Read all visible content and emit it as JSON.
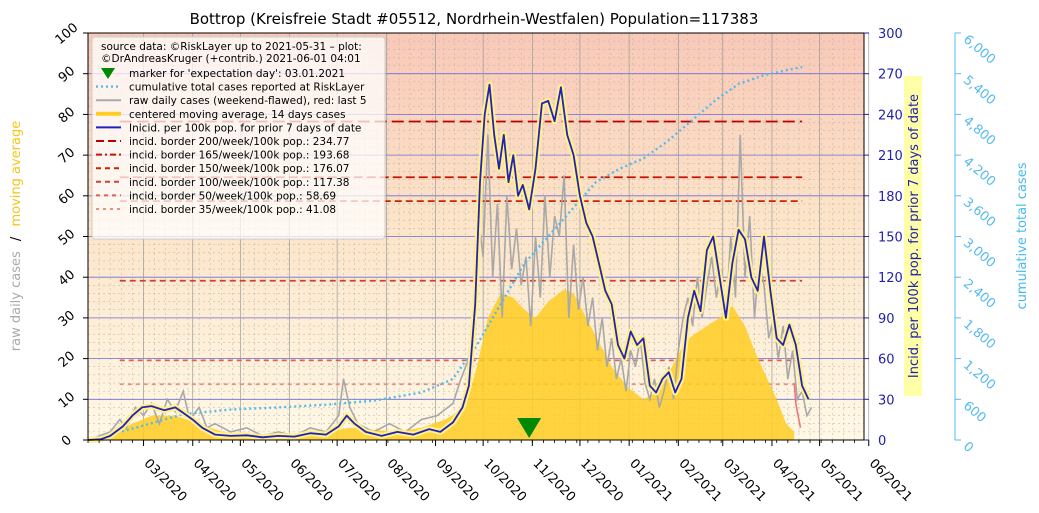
{
  "chart_data": {
    "type": "line",
    "title": "Bottrop (Kreisfreie Stadt #05512, Nordrhein-Westfalen) Population=117383",
    "ylabel_left": [
      "raw daily cases",
      "/",
      "moving average"
    ],
    "ylabel_right": "Incid. per 100k pop. for prior 7 days of date",
    "ylabel_far_right": "cumulative total cases",
    "ylim_left": [
      0,
      100
    ],
    "ylim_right": [
      0,
      300
    ],
    "ylim_far_right": [
      0,
      6000
    ],
    "yticks_left": [
      "0",
      "10",
      "20",
      "30",
      "40",
      "50",
      "60",
      "70",
      "80",
      "90",
      "100"
    ],
    "yticks_right": [
      "0",
      "30",
      "60",
      "90",
      "120",
      "150",
      "180",
      "210",
      "240",
      "270",
      "300"
    ],
    "yticks_far_right": [
      "0",
      "600",
      "1,200",
      "1,800",
      "2,400",
      "3,000",
      "3,600",
      "4,200",
      "4,800",
      "5,400",
      "6,000"
    ],
    "xticks": [
      "03/2020",
      "04/2020",
      "05/2020",
      "06/2020",
      "07/2020",
      "08/2020",
      "09/2020",
      "10/2020",
      "11/2020",
      "12/2020",
      "01/2021",
      "02/2021",
      "03/2021",
      "04/2021",
      "05/2021",
      "06/2021"
    ],
    "xrange_days": [
      0,
      489
    ],
    "legend": {
      "source": [
        "source data: ©RiskLayer up to 2021-05-31 – plot:",
        "©DrAndreasKruger (+contrib.) 2021-06-01 04:01"
      ],
      "entries": [
        "marker for 'expectation day': 03.01.2021",
        "cumulative total cases reported at RiskLayer",
        "raw daily cases (weekend-flawed), red: last 5",
        "centered moving average, 14 days cases",
        "Inicid. per 100k pop. for prior 7 days of date",
        "incid. border 200/week/100k pop.: 234.77",
        "incid. border 165/week/100k pop.: 193.68",
        "incid. border 150/week/100k pop.: 176.07",
        "incid. border 100/week/100k pop.: 117.38",
        "incid. border   50/week/100k pop.: 58.69",
        "incid. border   35/week/100k pop.: 41.08"
      ]
    },
    "borders": [
      {
        "label": "200",
        "value": 234.77,
        "color": "#bb0000",
        "dash": "12,5"
      },
      {
        "label": "165",
        "value": 193.68,
        "color": "#cc1100",
        "dash": "9,4"
      },
      {
        "label": "150",
        "value": 176.07,
        "color": "#cc2200",
        "dash": "7,4"
      },
      {
        "label": "100",
        "value": 117.38,
        "color": "#d04030",
        "dash": "6,4"
      },
      {
        "label": "50",
        "value": 58.69,
        "color": "#e06050",
        "dash": "5,4"
      },
      {
        "label": "35",
        "value": 41.08,
        "color": "#e89080",
        "dash": "4,4"
      }
    ],
    "expectation_day": 278,
    "moving_average": [
      [
        0,
        0
      ],
      [
        14,
        1.5
      ],
      [
        28,
        4
      ],
      [
        40,
        6
      ],
      [
        55,
        6
      ],
      [
        70,
        4
      ],
      [
        85,
        2
      ],
      [
        100,
        1.2
      ],
      [
        115,
        1
      ],
      [
        130,
        1.5
      ],
      [
        150,
        2
      ],
      [
        165,
        3
      ],
      [
        180,
        2.5
      ],
      [
        195,
        2
      ],
      [
        210,
        3
      ],
      [
        225,
        5
      ],
      [
        238,
        8
      ],
      [
        245,
        18
      ],
      [
        252,
        30
      ],
      [
        260,
        36
      ],
      [
        268,
        35
      ],
      [
        275,
        32
      ],
      [
        282,
        30
      ],
      [
        290,
        34
      ],
      [
        300,
        37
      ],
      [
        306,
        36
      ],
      [
        314,
        30
      ],
      [
        322,
        24
      ],
      [
        330,
        18
      ],
      [
        340,
        13
      ],
      [
        350,
        10
      ],
      [
        360,
        12
      ],
      [
        368,
        18
      ],
      [
        376,
        24
      ],
      [
        382,
        26
      ],
      [
        390,
        28
      ],
      [
        398,
        30
      ],
      [
        406,
        33
      ],
      [
        414,
        28
      ],
      [
        420,
        22
      ],
      [
        428,
        15
      ],
      [
        434,
        10
      ],
      [
        440,
        4
      ],
      [
        445,
        2
      ]
    ],
    "incidence": [
      [
        0,
        0
      ],
      [
        8,
        0.5
      ],
      [
        14,
        3
      ],
      [
        22,
        10
      ],
      [
        28,
        18
      ],
      [
        34,
        24
      ],
      [
        40,
        25
      ],
      [
        48,
        22
      ],
      [
        55,
        24
      ],
      [
        60,
        20
      ],
      [
        66,
        15
      ],
      [
        72,
        9
      ],
      [
        80,
        4
      ],
      [
        90,
        3
      ],
      [
        100,
        3.5
      ],
      [
        110,
        2
      ],
      [
        120,
        3
      ],
      [
        130,
        2.5
      ],
      [
        140,
        5
      ],
      [
        150,
        4
      ],
      [
        158,
        10
      ],
      [
        163,
        18
      ],
      [
        168,
        12
      ],
      [
        175,
        6
      ],
      [
        185,
        3
      ],
      [
        195,
        6
      ],
      [
        205,
        4
      ],
      [
        215,
        8
      ],
      [
        222,
        6
      ],
      [
        230,
        13
      ],
      [
        236,
        24
      ],
      [
        240,
        40
      ],
      [
        244,
        100
      ],
      [
        247,
        190
      ],
      [
        250,
        240
      ],
      [
        253,
        262
      ],
      [
        256,
        225
      ],
      [
        259,
        200
      ],
      [
        262,
        225
      ],
      [
        265,
        190
      ],
      [
        268,
        210
      ],
      [
        271,
        180
      ],
      [
        274,
        188
      ],
      [
        278,
        170
      ],
      [
        282,
        200
      ],
      [
        286,
        248
      ],
      [
        290,
        250
      ],
      [
        294,
        235
      ],
      [
        298,
        260
      ],
      [
        302,
        225
      ],
      [
        306,
        210
      ],
      [
        310,
        180
      ],
      [
        314,
        160
      ],
      [
        318,
        150
      ],
      [
        322,
        130
      ],
      [
        326,
        110
      ],
      [
        330,
        100
      ],
      [
        334,
        70
      ],
      [
        338,
        60
      ],
      [
        342,
        80
      ],
      [
        346,
        70
      ],
      [
        350,
        75
      ],
      [
        354,
        40
      ],
      [
        358,
        35
      ],
      [
        362,
        45
      ],
      [
        366,
        50
      ],
      [
        370,
        35
      ],
      [
        374,
        45
      ],
      [
        378,
        90
      ],
      [
        382,
        110
      ],
      [
        386,
        95
      ],
      [
        390,
        140
      ],
      [
        394,
        150
      ],
      [
        398,
        120
      ],
      [
        402,
        90
      ],
      [
        406,
        130
      ],
      [
        410,
        155
      ],
      [
        414,
        148
      ],
      [
        418,
        120
      ],
      [
        422,
        110
      ],
      [
        426,
        150
      ],
      [
        430,
        110
      ],
      [
        434,
        75
      ],
      [
        438,
        70
      ],
      [
        442,
        85
      ],
      [
        446,
        70
      ],
      [
        450,
        40
      ],
      [
        454,
        30
      ]
    ],
    "cumulative": [
      [
        0,
        0
      ],
      [
        30,
        180
      ],
      [
        60,
        380
      ],
      [
        90,
        450
      ],
      [
        120,
        480
      ],
      [
        150,
        520
      ],
      [
        180,
        580
      ],
      [
        210,
        700
      ],
      [
        230,
        900
      ],
      [
        245,
        1400
      ],
      [
        260,
        2000
      ],
      [
        275,
        2600
      ],
      [
        290,
        3000
      ],
      [
        305,
        3400
      ],
      [
        320,
        3800
      ],
      [
        335,
        4000
      ],
      [
        350,
        4150
      ],
      [
        365,
        4400
      ],
      [
        380,
        4700
      ],
      [
        395,
        5000
      ],
      [
        410,
        5250
      ],
      [
        425,
        5370
      ],
      [
        440,
        5450
      ],
      [
        450,
        5500
      ]
    ],
    "raw_daily": [
      [
        0,
        0
      ],
      [
        14,
        2
      ],
      [
        20,
        5
      ],
      [
        24,
        3
      ],
      [
        30,
        8
      ],
      [
        35,
        6
      ],
      [
        40,
        9
      ],
      [
        45,
        4
      ],
      [
        50,
        10
      ],
      [
        55,
        7
      ],
      [
        60,
        12
      ],
      [
        64,
        5
      ],
      [
        70,
        8
      ],
      [
        75,
        3
      ],
      [
        80,
        4
      ],
      [
        90,
        2
      ],
      [
        100,
        3
      ],
      [
        110,
        1
      ],
      [
        120,
        2
      ],
      [
        130,
        1
      ],
      [
        140,
        3
      ],
      [
        150,
        2
      ],
      [
        158,
        6
      ],
      [
        161,
        15
      ],
      [
        165,
        8
      ],
      [
        170,
        4
      ],
      [
        180,
        2
      ],
      [
        190,
        4
      ],
      [
        200,
        2
      ],
      [
        210,
        5
      ],
      [
        220,
        6
      ],
      [
        230,
        9
      ],
      [
        235,
        15
      ],
      [
        240,
        20
      ],
      [
        243,
        30
      ],
      [
        246,
        55
      ],
      [
        249,
        45
      ],
      [
        252,
        75
      ],
      [
        255,
        40
      ],
      [
        258,
        58
      ],
      [
        261,
        30
      ],
      [
        264,
        60
      ],
      [
        267,
        42
      ],
      [
        270,
        52
      ],
      [
        273,
        38
      ],
      [
        276,
        45
      ],
      [
        279,
        28
      ],
      [
        282,
        50
      ],
      [
        285,
        35
      ],
      [
        288,
        60
      ],
      [
        291,
        40
      ],
      [
        294,
        55
      ],
      [
        297,
        50
      ],
      [
        300,
        65
      ],
      [
        303,
        30
      ],
      [
        306,
        48
      ],
      [
        309,
        32
      ],
      [
        312,
        40
      ],
      [
        315,
        28
      ],
      [
        318,
        35
      ],
      [
        321,
        22
      ],
      [
        324,
        30
      ],
      [
        327,
        18
      ],
      [
        330,
        25
      ],
      [
        333,
        15
      ],
      [
        336,
        20
      ],
      [
        339,
        12
      ],
      [
        342,
        22
      ],
      [
        345,
        18
      ],
      [
        348,
        25
      ],
      [
        351,
        14
      ],
      [
        354,
        10
      ],
      [
        357,
        15
      ],
      [
        360,
        8
      ],
      [
        363,
        12
      ],
      [
        366,
        18
      ],
      [
        369,
        10
      ],
      [
        372,
        22
      ],
      [
        375,
        30
      ],
      [
        378,
        35
      ],
      [
        381,
        28
      ],
      [
        384,
        40
      ],
      [
        387,
        30
      ],
      [
        390,
        38
      ],
      [
        393,
        45
      ],
      [
        396,
        35
      ],
      [
        399,
        42
      ],
      [
        402,
        30
      ],
      [
        405,
        50
      ],
      [
        408,
        35
      ],
      [
        411,
        75
      ],
      [
        414,
        40
      ],
      [
        417,
        55
      ],
      [
        420,
        30
      ],
      [
        423,
        45
      ],
      [
        426,
        38
      ],
      [
        429,
        25
      ],
      [
        432,
        30
      ],
      [
        435,
        20
      ],
      [
        438,
        28
      ],
      [
        441,
        15
      ],
      [
        444,
        22
      ],
      [
        447,
        10
      ],
      [
        450,
        12
      ],
      [
        453,
        6
      ],
      [
        456,
        8
      ]
    ],
    "raw_last5": [
      [
        445,
        14
      ],
      [
        446,
        9
      ],
      [
        447,
        7
      ],
      [
        448,
        5
      ],
      [
        449,
        3
      ]
    ]
  }
}
